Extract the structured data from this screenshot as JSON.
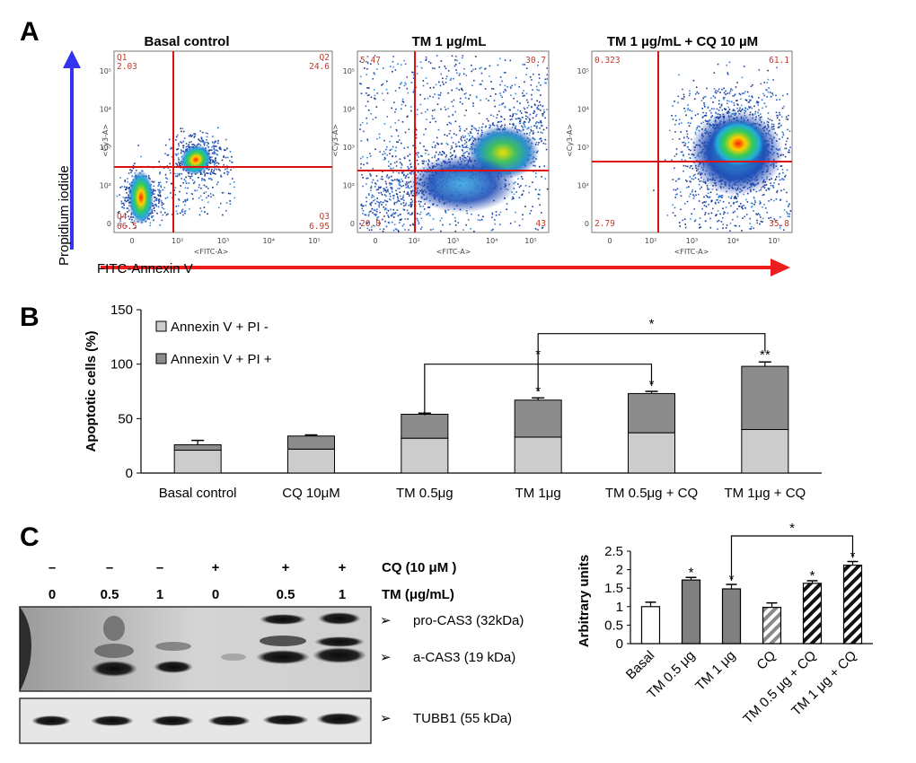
{
  "panels": {
    "a": "A",
    "b": "B",
    "c": "C"
  },
  "flow": {
    "y_axis_label": "Propidium iodide",
    "x_axis_label": "FITC-Annexin V",
    "plots": [
      {
        "title": "Basal control",
        "ylabel": "<Cy3-A>",
        "xlabel": "<FITC-A>",
        "q1_name": "Q1",
        "q2_name": "Q2",
        "q3_name": "Q3",
        "q4_name": "Q4",
        "q1": "2.03",
        "q2": "24.6",
        "q3": "6.95",
        "q4": "66.5"
      },
      {
        "title": "TM 1 µg/mL",
        "ylabel": "<Cy3-A>",
        "xlabel": "<FITC-A>",
        "q1_name": "",
        "q2_name": "",
        "q3_name": "",
        "q4_name": "",
        "q1": "5.47",
        "q2": "30.7",
        "q3": "43",
        "q4": "20.8"
      },
      {
        "title": "TM 1 µg/mL + CQ 10 µM",
        "ylabel": "<Cy3-A>",
        "xlabel": "<FITC-A>",
        "q1_name": "",
        "q2_name": "",
        "q3_name": "",
        "q4_name": "",
        "q1": "0.323",
        "q2": "61.1",
        "q3": "35.8",
        "q4": "2.79"
      }
    ],
    "yticks": [
      "10⁵",
      "10⁴",
      "10³",
      "10²",
      "0"
    ],
    "xticks": [
      "0",
      "10²",
      "10³",
      "10⁴",
      "10⁵"
    ]
  },
  "chart_data": [
    {
      "type": "bar",
      "stacked": true,
      "title": "",
      "ylabel": "Apoptotic cells (%)",
      "xlabel": "",
      "ylim": [
        0,
        150
      ],
      "yticks": [
        0,
        50,
        100,
        150
      ],
      "categories": [
        "Basal control",
        "CQ 10μM",
        "TM 0.5μg",
        "TM 1μg",
        "TM 0.5μg + CQ",
        "TM 1μg + CQ"
      ],
      "series": [
        {
          "name": "Annexin V + PI -",
          "color": "#cccccc",
          "values": [
            21,
            22,
            32,
            33,
            37,
            40
          ],
          "errors": [
            0,
            2,
            3,
            0,
            6,
            0
          ]
        },
        {
          "name": "Annexin V + PI +",
          "color": "#8c8c8c",
          "values": [
            5,
            12,
            22,
            34,
            36,
            58
          ],
          "errors": [
            4,
            1,
            1,
            2,
            2,
            4
          ]
        }
      ],
      "significance": [
        "",
        "",
        "",
        "*",
        "*",
        "**"
      ],
      "brackets": [
        {
          "from": "TM 0.5μg",
          "to": "TM 0.5μg + CQ",
          "label": "*"
        },
        {
          "from": "TM 1μg",
          "to": "TM 1μg + CQ",
          "label": "*"
        }
      ]
    },
    {
      "type": "bar",
      "title": "",
      "ylabel": "Arbitrary units",
      "xlabel": "",
      "ylim": [
        0,
        2.5
      ],
      "yticks": [
        "0",
        "0.5",
        "1",
        "1.5",
        "2",
        "2.5"
      ],
      "categories": [
        "Basal",
        "TM 0.5 μg",
        "TM 1 μg",
        "CQ",
        "TM 0.5 μg + CQ",
        "TM 1 μg + CQ"
      ],
      "values": [
        1.0,
        1.72,
        1.48,
        0.98,
        1.63,
        2.12
      ],
      "errors": [
        0.12,
        0.07,
        0.12,
        0.12,
        0.07,
        0.1
      ],
      "styles": [
        "white",
        "gray",
        "gray",
        "hatch-gray",
        "hatch-black",
        "hatch-black"
      ],
      "significance": [
        "",
        "*",
        "*",
        "",
        "*",
        "*"
      ],
      "brackets": [
        {
          "from": "TM 1 μg",
          "to": "TM 1 μg + CQ",
          "label": "*"
        }
      ]
    }
  ],
  "western": {
    "cq_signs": [
      "–",
      "–",
      "–",
      "+",
      "+",
      "+"
    ],
    "tm_doses": [
      "0",
      "0.5",
      "1",
      "0",
      "0.5",
      "1"
    ],
    "cq_label": "CQ  (10 μM )",
    "tm_label": "TM  (μg/mL)",
    "bands": [
      "pro-CAS3 (32kDa)",
      "a-CAS3 (19 kDa)",
      "TUBB1 (55 kDa)"
    ],
    "arrow": "➢"
  }
}
